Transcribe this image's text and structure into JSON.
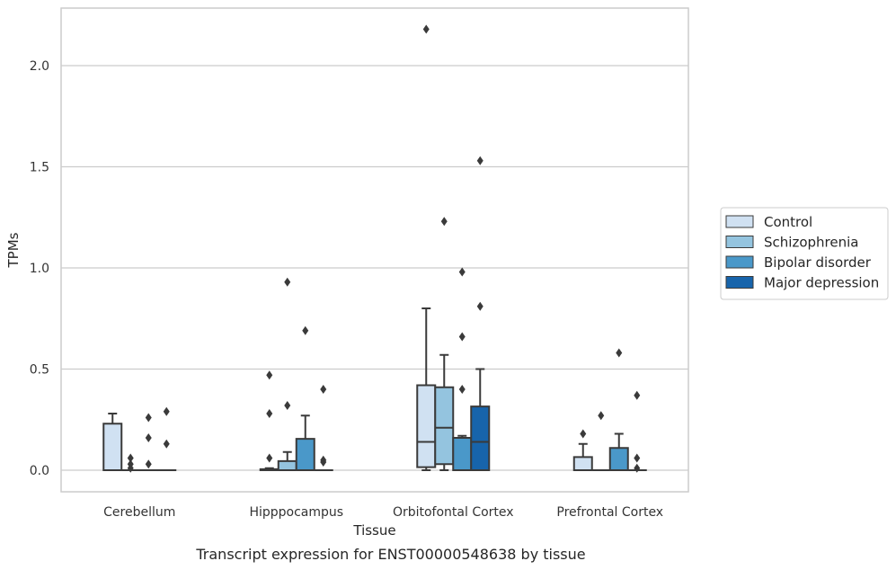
{
  "chart_data": {
    "type": "box",
    "xlabel": "Tissue",
    "ylabel": "TPMs",
    "caption": "Transcript expression for ENST00000548638 by tissue",
    "ylim": [
      -0.105,
      2.3
    ],
    "yticks": [
      "0.0",
      "0.5",
      "1.0",
      "1.5",
      "2.0"
    ],
    "grid": "horizontal",
    "legend_position": "right",
    "categories": [
      "Cerebellum",
      "Hipppocampus",
      "Orbitofontal Cortex",
      "Prefrontal Cortex"
    ],
    "series": [
      {
        "name": "Control",
        "color": "#d0e1f2"
      },
      {
        "name": "Schizophrenia",
        "color": "#94c4df"
      },
      {
        "name": "Bipolar disorder",
        "color": "#4a98c9"
      },
      {
        "name": "Major depression",
        "color": "#1764ab"
      }
    ],
    "boxes": [
      {
        "category": "Cerebellum",
        "series": "Control",
        "q1": 0.0,
        "median": 0.0,
        "q3": 0.23,
        "whisker_low": 0.0,
        "whisker_high": 0.28,
        "outliers": []
      },
      {
        "category": "Cerebellum",
        "series": "Schizophrenia",
        "q1": 0.0,
        "median": 0.0,
        "q3": 0.0,
        "whisker_low": 0.0,
        "whisker_high": 0.0,
        "outliers": [
          0.06,
          0.03,
          0.01
        ]
      },
      {
        "category": "Cerebellum",
        "series": "Bipolar disorder",
        "q1": 0.0,
        "median": 0.0,
        "q3": 0.0,
        "whisker_low": 0.0,
        "whisker_high": 0.0,
        "outliers": [
          0.26,
          0.16,
          0.03
        ]
      },
      {
        "category": "Cerebellum",
        "series": "Major depression",
        "q1": 0.0,
        "median": 0.0,
        "q3": 0.0,
        "whisker_low": 0.0,
        "whisker_high": 0.0,
        "outliers": [
          0.29,
          0.13
        ]
      },
      {
        "category": "Hipppocampus",
        "series": "Control",
        "q1": 0.0,
        "median": 0.0,
        "q3": 0.005,
        "whisker_low": 0.0,
        "whisker_high": 0.01,
        "outliers": [
          0.47,
          0.28,
          0.06
        ]
      },
      {
        "category": "Hipppocampus",
        "series": "Schizophrenia",
        "q1": 0.0,
        "median": 0.0,
        "q3": 0.045,
        "whisker_low": 0.0,
        "whisker_high": 0.09,
        "outliers": [
          0.93,
          0.32
        ]
      },
      {
        "category": "Hipppocampus",
        "series": "Bipolar disorder",
        "q1": 0.0,
        "median": 0.0,
        "q3": 0.155,
        "whisker_low": 0.0,
        "whisker_high": 0.27,
        "outliers": [
          0.69
        ]
      },
      {
        "category": "Hipppocampus",
        "series": "Major depression",
        "q1": 0.0,
        "median": 0.0,
        "q3": 0.0,
        "whisker_low": 0.0,
        "whisker_high": 0.0,
        "outliers": [
          0.4,
          0.05,
          0.04
        ]
      },
      {
        "category": "Orbitofontal Cortex",
        "series": "Control",
        "q1": 0.015,
        "median": 0.14,
        "q3": 0.42,
        "whisker_low": 0.0,
        "whisker_high": 0.8,
        "outliers": [
          2.18
        ]
      },
      {
        "category": "Orbitofontal Cortex",
        "series": "Schizophrenia",
        "q1": 0.03,
        "median": 0.21,
        "q3": 0.41,
        "whisker_low": 0.0,
        "whisker_high": 0.57,
        "outliers": [
          1.23
        ]
      },
      {
        "category": "Orbitofontal Cortex",
        "series": "Bipolar disorder",
        "q1": 0.0,
        "median": 0.0,
        "q3": 0.16,
        "whisker_low": 0.0,
        "whisker_high": 0.17,
        "outliers": [
          0.98,
          0.66,
          0.4
        ]
      },
      {
        "category": "Orbitofontal Cortex",
        "series": "Major depression",
        "q1": 0.0,
        "median": 0.14,
        "q3": 0.315,
        "whisker_low": 0.0,
        "whisker_high": 0.5,
        "outliers": [
          1.53,
          0.81
        ]
      },
      {
        "category": "Prefrontal Cortex",
        "series": "Control",
        "q1": 0.0,
        "median": 0.0,
        "q3": 0.065,
        "whisker_low": 0.0,
        "whisker_high": 0.13,
        "outliers": [
          0.18
        ]
      },
      {
        "category": "Prefrontal Cortex",
        "series": "Schizophrenia",
        "q1": 0.0,
        "median": 0.0,
        "q3": 0.0,
        "whisker_low": 0.0,
        "whisker_high": 0.0,
        "outliers": [
          0.27
        ]
      },
      {
        "category": "Prefrontal Cortex",
        "series": "Bipolar disorder",
        "q1": 0.0,
        "median": 0.0,
        "q3": 0.11,
        "whisker_low": 0.0,
        "whisker_high": 0.18,
        "outliers": [
          0.58
        ]
      },
      {
        "category": "Prefrontal Cortex",
        "series": "Major depression",
        "q1": 0.0,
        "median": 0.0,
        "q3": 0.0,
        "whisker_low": 0.0,
        "whisker_high": 0.0,
        "outliers": [
          0.37,
          0.06,
          0.01
        ]
      }
    ]
  }
}
